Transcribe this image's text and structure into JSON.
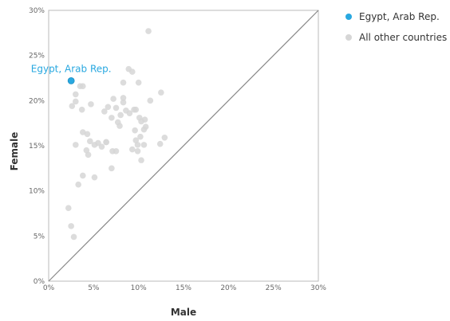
{
  "chart_data": {
    "type": "scatter",
    "xlabel": "Male",
    "ylabel": "Female",
    "xlim": [
      0,
      30
    ],
    "ylim": [
      0,
      30
    ],
    "x_ticks": [
      "0%",
      "5%",
      "10%",
      "15%",
      "20%",
      "25%",
      "30%"
    ],
    "y_ticks": [
      "0%",
      "5%",
      "10%",
      "15%",
      "20%",
      "25%",
      "30%"
    ],
    "reference_line": "y = x",
    "colors": {
      "highlight": "#29a8e0",
      "others": "#d6d6d6",
      "reference": "#888888",
      "axis": "#bbbbbb"
    },
    "legend": {
      "position": "top-right",
      "items": [
        "Egypt, Arab Rep.",
        "All other countries"
      ]
    },
    "series": [
      {
        "name": "Egypt, Arab Rep.",
        "points": [
          [
            2.5,
            22.2
          ]
        ],
        "annotation": "Egypt, Arab Rep."
      },
      {
        "name": "All other countries",
        "points": [
          [
            11.1,
            27.7
          ],
          [
            8.9,
            23.5
          ],
          [
            9.3,
            23.2
          ],
          [
            10.0,
            22.0
          ],
          [
            8.3,
            22.0
          ],
          [
            3.5,
            21.6
          ],
          [
            3.8,
            21.6
          ],
          [
            12.5,
            20.9
          ],
          [
            3.0,
            20.7
          ],
          [
            7.2,
            20.2
          ],
          [
            8.3,
            20.3
          ],
          [
            8.3,
            19.8
          ],
          [
            11.3,
            20.0
          ],
          [
            3.0,
            19.9
          ],
          [
            2.6,
            19.4
          ],
          [
            4.7,
            19.6
          ],
          [
            7.5,
            19.2
          ],
          [
            6.6,
            19.3
          ],
          [
            8.6,
            18.9
          ],
          [
            9.5,
            19.0
          ],
          [
            9.7,
            19.0
          ],
          [
            3.7,
            19.0
          ],
          [
            6.2,
            18.8
          ],
          [
            7.0,
            18.1
          ],
          [
            8.0,
            18.4
          ],
          [
            9.0,
            18.6
          ],
          [
            10.1,
            18.1
          ],
          [
            10.7,
            17.9
          ],
          [
            7.7,
            17.6
          ],
          [
            10.3,
            17.7
          ],
          [
            7.9,
            17.2
          ],
          [
            10.8,
            17.1
          ],
          [
            10.6,
            16.8
          ],
          [
            9.6,
            16.7
          ],
          [
            3.8,
            16.5
          ],
          [
            4.3,
            16.3
          ],
          [
            10.2,
            16.0
          ],
          [
            12.9,
            15.9
          ],
          [
            9.7,
            15.6
          ],
          [
            4.6,
            15.5
          ],
          [
            6.4,
            15.4
          ],
          [
            5.5,
            15.3
          ],
          [
            5.1,
            15.1
          ],
          [
            5.9,
            14.9
          ],
          [
            9.9,
            15.1
          ],
          [
            10.6,
            15.1
          ],
          [
            12.4,
            15.2
          ],
          [
            3.0,
            15.1
          ],
          [
            6.4,
            15.4
          ],
          [
            7.1,
            14.4
          ],
          [
            7.5,
            14.4
          ],
          [
            9.3,
            14.6
          ],
          [
            9.9,
            14.4
          ],
          [
            4.2,
            14.5
          ],
          [
            4.4,
            14.0
          ],
          [
            10.3,
            13.4
          ],
          [
            7.0,
            12.5
          ],
          [
            3.8,
            11.7
          ],
          [
            5.1,
            11.5
          ],
          [
            3.3,
            10.7
          ],
          [
            2.2,
            8.1
          ],
          [
            2.5,
            6.1
          ],
          [
            2.8,
            4.9
          ]
        ]
      }
    ]
  }
}
